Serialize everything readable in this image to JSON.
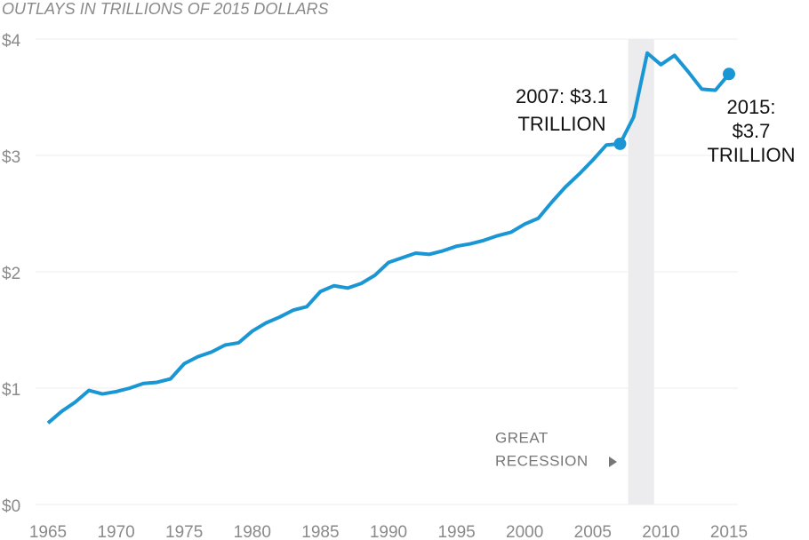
{
  "chart_data": {
    "type": "line",
    "title": "OUTLAYS IN TRILLIONS OF 2015 DOLLARS",
    "x": [
      1965,
      1966,
      1967,
      1968,
      1969,
      1970,
      1971,
      1972,
      1973,
      1974,
      1975,
      1976,
      1977,
      1978,
      1979,
      1980,
      1981,
      1982,
      1983,
      1984,
      1985,
      1986,
      1987,
      1988,
      1989,
      1990,
      1991,
      1992,
      1993,
      1994,
      1995,
      1996,
      1997,
      1998,
      1999,
      2000,
      2001,
      2002,
      2003,
      2004,
      2005,
      2006,
      2007,
      2008,
      2009,
      2010,
      2011,
      2012,
      2013,
      2014,
      2015
    ],
    "series": [
      {
        "color": "#1a96d4",
        "values": [
          0.7,
          0.8,
          0.88,
          0.98,
          0.95,
          0.97,
          1.0,
          1.04,
          1.05,
          1.08,
          1.21,
          1.27,
          1.31,
          1.37,
          1.39,
          1.49,
          1.56,
          1.61,
          1.67,
          1.7,
          1.83,
          1.88,
          1.86,
          1.9,
          1.97,
          2.08,
          2.12,
          2.16,
          2.15,
          2.18,
          2.22,
          2.24,
          2.27,
          2.31,
          2.34,
          2.41,
          2.46,
          2.6,
          2.73,
          2.84,
          2.96,
          3.09,
          3.1,
          3.33,
          3.88,
          3.78,
          3.86,
          3.72,
          3.57,
          3.56,
          3.7
        ]
      }
    ],
    "xlim": [
      1965,
      2015
    ],
    "xticks": [
      1965,
      1970,
      1975,
      1980,
      1985,
      1990,
      1995,
      2000,
      2005,
      2010,
      2015
    ],
    "ylim": [
      0,
      4
    ],
    "yticks": [
      {
        "value": 0,
        "label": "$0"
      },
      {
        "value": 1,
        "label": "$1"
      },
      {
        "value": 2,
        "label": "$2"
      },
      {
        "value": 3,
        "label": "$3"
      },
      {
        "value": 4,
        "label": "$4"
      }
    ],
    "grid": true,
    "highlight": {
      "x": [
        2007.6,
        2009.5
      ],
      "color": "#ececee",
      "lines": [
        "GREAT",
        "RECESSION"
      ]
    },
    "annotations": [
      {
        "index": 42,
        "lines": [
          "2007: $3.1",
          "TRILLION"
        ]
      },
      {
        "index": 50,
        "lines": [
          "2015:",
          "$3.7",
          "TRILLION"
        ]
      }
    ]
  }
}
